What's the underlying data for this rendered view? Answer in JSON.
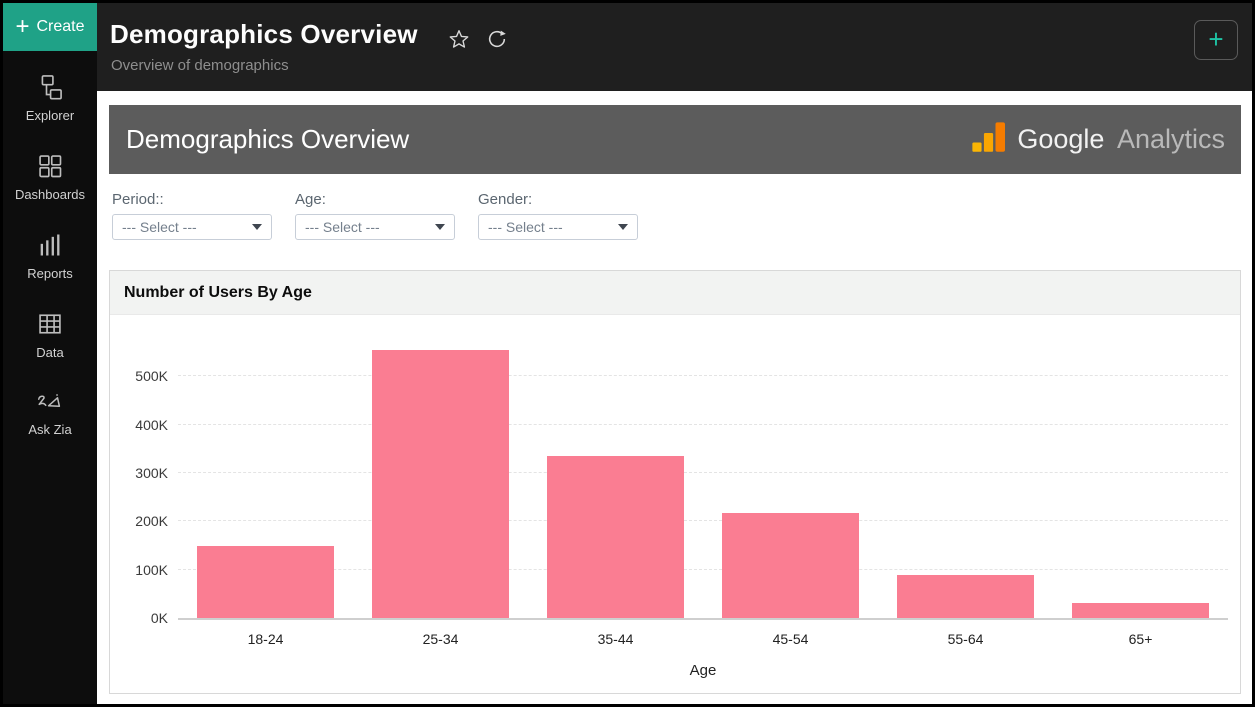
{
  "sidebar": {
    "create": {
      "plus": "+",
      "label": "Create"
    },
    "items": [
      {
        "label": "Explorer"
      },
      {
        "label": "Dashboards"
      },
      {
        "label": "Reports"
      },
      {
        "label": "Data"
      },
      {
        "label": "Ask Zia"
      }
    ]
  },
  "header": {
    "title": "Demographics Overview",
    "subtitle": "Overview of demographics",
    "add_label": "+"
  },
  "banner": {
    "title": "Demographics Overview",
    "brand_google": "Google",
    "brand_analytics": "Analytics"
  },
  "filters": [
    {
      "label": "Period::",
      "value": "--- Select ---"
    },
    {
      "label": "Age:",
      "value": "--- Select ---"
    },
    {
      "label": "Gender:",
      "value": "--- Select ---"
    }
  ],
  "chart_data": {
    "type": "bar",
    "title": "Number of Users By Age",
    "xlabel": "Age",
    "ylabel": "",
    "categories": [
      "18-24",
      "25-34",
      "35-44",
      "45-54",
      "55-64",
      "65+"
    ],
    "values": [
      150000,
      555000,
      335000,
      218000,
      88000,
      32000
    ],
    "yticks": [
      0,
      100000,
      200000,
      300000,
      400000,
      500000
    ],
    "ytick_labels": [
      "0K",
      "100K",
      "200K",
      "300K",
      "400K",
      "500K"
    ],
    "ylim": [
      0,
      573000
    ],
    "bar_color": "#FA7D92",
    "grid": "horizontal-dashed",
    "legend": "none"
  },
  "colors": {
    "accent_teal": "#1FA287",
    "sidebar_bg": "#0d0d0d",
    "topbar_bg": "#1f1f1f",
    "banner_bg": "#5C5C5C",
    "bar_pink": "#FA7D92",
    "ga_orange": "#F57C00",
    "ga_amber": "#F9A602",
    "ga_yellow": "#FBB604"
  }
}
